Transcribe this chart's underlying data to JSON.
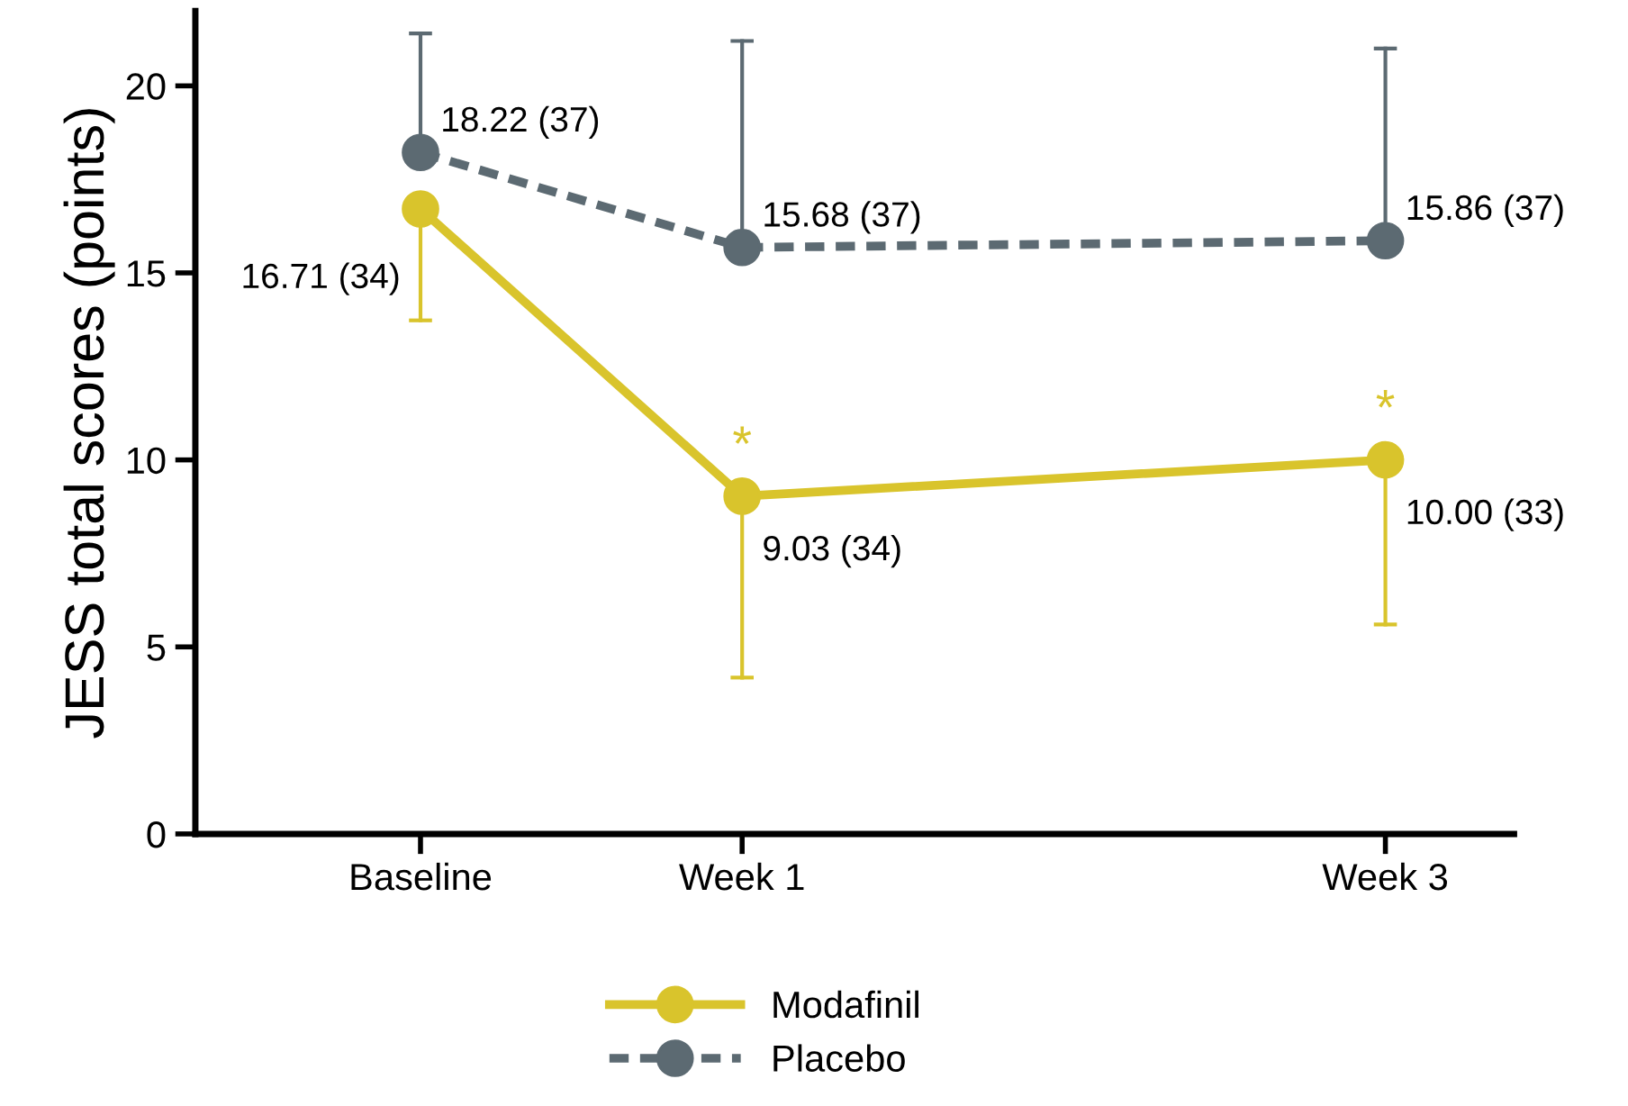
{
  "chart_data": {
    "type": "line",
    "ylabel": "JESS total scores (points)",
    "categories": [
      "Baseline",
      "Week 1",
      null,
      "Week 3"
    ],
    "ylim": [
      0,
      22
    ],
    "yticks": [
      0,
      5,
      10,
      15,
      20
    ],
    "grid": false,
    "legend": "bottom",
    "marker": "circle",
    "series": [
      {
        "name": "Modafinil",
        "color": "#d9c42c",
        "line_style": "solid",
        "values": [
          16.71,
          9.03,
          null,
          10.0
        ],
        "errors": [
          [
            13.73,
            16.71
          ],
          [
            4.18,
            9.03
          ],
          null,
          [
            5.6,
            10.0
          ]
        ],
        "value_labels": [
          "16.71 (34)",
          "9.03 (34)",
          null,
          "10.00 (33)"
        ]
      },
      {
        "name": "Placebo",
        "color": "#5c6a72",
        "line_style": "dashed",
        "values": [
          18.22,
          15.68,
          null,
          15.86
        ],
        "errors": [
          [
            18.22,
            21.4
          ],
          [
            15.68,
            21.2
          ],
          null,
          [
            15.86,
            21.0
          ]
        ],
        "value_labels": [
          "18.22 (37)",
          "15.68 (37)",
          null,
          "15.86 (37)"
        ]
      }
    ],
    "annotations": [
      "*",
      "*"
    ]
  }
}
